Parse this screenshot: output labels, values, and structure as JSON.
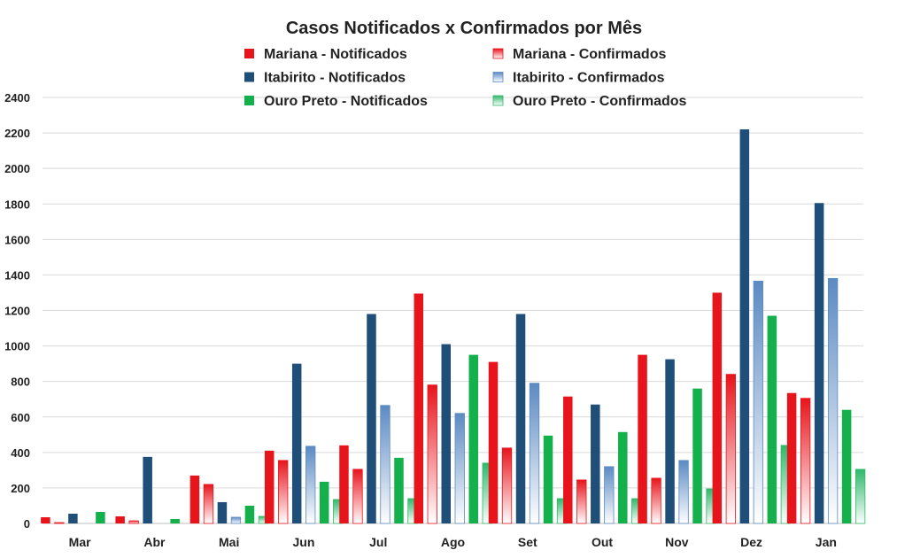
{
  "chart_data": {
    "type": "bar",
    "title": "Casos Notificados x Confirmados por Mês",
    "xlabel": "",
    "ylabel": "",
    "ylim": [
      0,
      2400
    ],
    "yticks": [
      0,
      200,
      400,
      600,
      800,
      1000,
      1200,
      1400,
      1600,
      1800,
      2000,
      2200,
      2400
    ],
    "grid": true,
    "legend_placement": "top",
    "categories": [
      "Mar",
      "Abr",
      "Mai",
      "Jun",
      "Jul",
      "Ago",
      "Set",
      "Out",
      "Nov",
      "Dez",
      "Jan"
    ],
    "series": [
      {
        "name": "Mariana - Notificados",
        "color": "#e8141c",
        "style": "solid",
        "values": [
          35,
          40,
          270,
          410,
          440,
          1295,
          910,
          715,
          950,
          1300,
          735
        ]
      },
      {
        "name": "Mariana - Confirmados",
        "color": "#e8141c",
        "style": "gradient",
        "values": [
          5,
          15,
          220,
          355,
          305,
          780,
          425,
          245,
          255,
          840,
          705
        ]
      },
      {
        "name": "Itabirito - Notificados",
        "color": "#1f4e79",
        "style": "solid",
        "values": [
          55,
          375,
          120,
          900,
          1180,
          1010,
          1180,
          670,
          925,
          2220,
          1805
        ]
      },
      {
        "name": "Itabirito - Confirmados",
        "color": "#5b8ac2",
        "style": "gradient",
        "values": [
          0,
          0,
          35,
          435,
          665,
          620,
          790,
          320,
          355,
          1365,
          1380
        ]
      },
      {
        "name": "Ouro Preto - Notificados",
        "color": "#13b04c",
        "style": "solid",
        "values": [
          65,
          25,
          100,
          235,
          370,
          950,
          495,
          515,
          760,
          1170,
          640
        ]
      },
      {
        "name": "Ouro Preto - Confirmados",
        "color": "#2fb86a",
        "style": "gradient",
        "values": [
          0,
          0,
          40,
          135,
          140,
          340,
          140,
          140,
          195,
          440,
          305
        ]
      }
    ]
  }
}
